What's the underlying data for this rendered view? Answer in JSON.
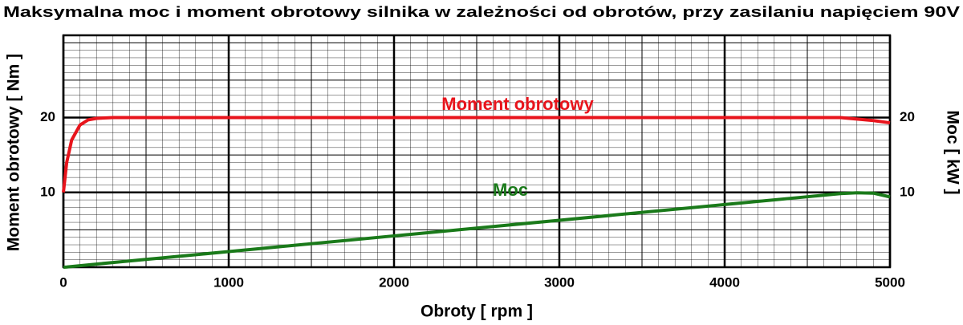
{
  "chart_data": {
    "type": "line",
    "title": "Maksymalna moc i moment obrotowy silnika w zależności od obrotów, przy zasilaniu napięciem 90V",
    "x_label": "Obroty [ rpm ]",
    "y_label": "Moment obrotowy [ Nm ]",
    "y2_label": "Moc [ kW ]",
    "x": [
      0,
      20,
      50,
      100,
      150,
      200,
      300,
      1000,
      2000,
      3000,
      4000,
      4500,
      4700,
      4800,
      4900,
      5000
    ],
    "series": [
      {
        "name": "Moment obrotowy",
        "color": "#e8141c",
        "values": [
          10,
          14,
          17,
          19,
          19.7,
          19.9,
          20,
          20,
          20,
          20,
          20,
          20,
          20,
          19.8,
          19.6,
          19.3
        ]
      },
      {
        "name": "Moc",
        "color": "#1a7a1a",
        "axis": "y2",
        "values": [
          0,
          0.03,
          0.09,
          0.2,
          0.31,
          0.42,
          0.63,
          2.09,
          4.19,
          6.28,
          8.38,
          9.42,
          9.84,
          9.95,
          9.9,
          9.4
        ]
      }
    ],
    "xlim": [
      0,
      5000
    ],
    "xticks": [
      0,
      1000,
      2000,
      3000,
      4000,
      5000
    ],
    "ylim": [
      0,
      31
    ],
    "yticks": [
      10,
      20
    ],
    "y2lim": [
      0,
      31
    ],
    "y2ticks": [
      10,
      20
    ],
    "grid": true
  }
}
